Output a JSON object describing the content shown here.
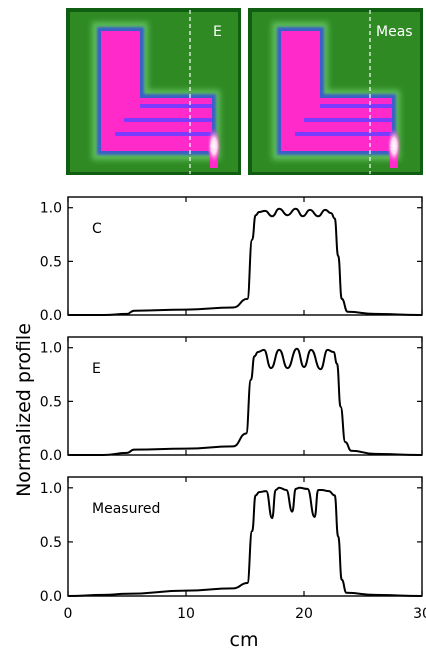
{
  "images": [
    {
      "label": "E"
    },
    {
      "label": "Meas"
    }
  ],
  "axes": {
    "xlabel": "cm",
    "ylabel": "Normalized profile",
    "x_ticks": [
      "0",
      "10",
      "20",
      "30"
    ],
    "y_ticks": [
      "0.0",
      "0.5",
      "1.0"
    ]
  },
  "chart_data": [
    {
      "type": "line",
      "label": "C",
      "xlim": [
        0,
        30
      ],
      "ylim": [
        0,
        1.1
      ],
      "x": [
        0,
        3,
        5,
        5.6,
        10,
        14,
        15.2,
        15.6,
        15.9,
        16.2,
        16.7,
        17.3,
        17.9,
        18.6,
        19.3,
        19.9,
        20.5,
        21.2,
        21.8,
        22.3,
        22.6,
        22.9,
        23.2,
        23.7,
        26,
        30
      ],
      "values": [
        0.0,
        0.0,
        0.01,
        0.04,
        0.05,
        0.07,
        0.15,
        0.7,
        0.93,
        0.96,
        0.97,
        0.92,
        0.99,
        0.93,
        0.99,
        0.92,
        0.98,
        0.92,
        0.98,
        0.95,
        0.9,
        0.55,
        0.15,
        0.03,
        0.01,
        0.0
      ]
    },
    {
      "type": "line",
      "label": "E",
      "xlim": [
        0,
        30
      ],
      "ylim": [
        0,
        1.1
      ],
      "x": [
        0,
        3,
        5,
        5.6,
        10,
        14,
        15.1,
        15.5,
        15.8,
        16.1,
        16.6,
        17.2,
        17.9,
        18.6,
        19.4,
        20.0,
        20.6,
        21.4,
        22.0,
        22.5,
        22.8,
        23.1,
        23.5,
        24,
        26,
        30
      ],
      "values": [
        0.0,
        0.0,
        0.02,
        0.05,
        0.06,
        0.08,
        0.2,
        0.7,
        0.92,
        0.96,
        0.98,
        0.81,
        0.98,
        0.81,
        0.99,
        0.82,
        0.98,
        0.8,
        0.98,
        0.96,
        0.85,
        0.45,
        0.12,
        0.04,
        0.01,
        0.0
      ]
    },
    {
      "type": "line",
      "label": "Measured",
      "xlim": [
        0,
        30
      ],
      "ylim": [
        0,
        1.1
      ],
      "x": [
        0,
        3,
        5,
        10,
        14,
        15.2,
        15.6,
        15.9,
        16.2,
        16.8,
        17.3,
        17.6,
        17.9,
        18.5,
        19.0,
        19.3,
        19.6,
        20.3,
        20.9,
        21.2,
        21.5,
        22.1,
        22.6,
        22.9,
        23.2,
        23.6,
        26,
        30
      ],
      "values": [
        0.0,
        0.01,
        0.02,
        0.05,
        0.07,
        0.12,
        0.6,
        0.93,
        0.96,
        0.97,
        0.72,
        0.98,
        1.0,
        0.98,
        0.78,
        0.99,
        1.0,
        0.99,
        0.73,
        0.98,
        0.98,
        0.97,
        0.93,
        0.55,
        0.15,
        0.03,
        0.01,
        0.0
      ]
    }
  ],
  "colors": {
    "line": "#000000",
    "image_bg": "#167a18",
    "image_field": "#58b23c",
    "image_core": "#ff20c8",
    "image_edge": "#7a3cff",
    "image_bright": "#ffffff",
    "marker_line": "#ffffff"
  }
}
